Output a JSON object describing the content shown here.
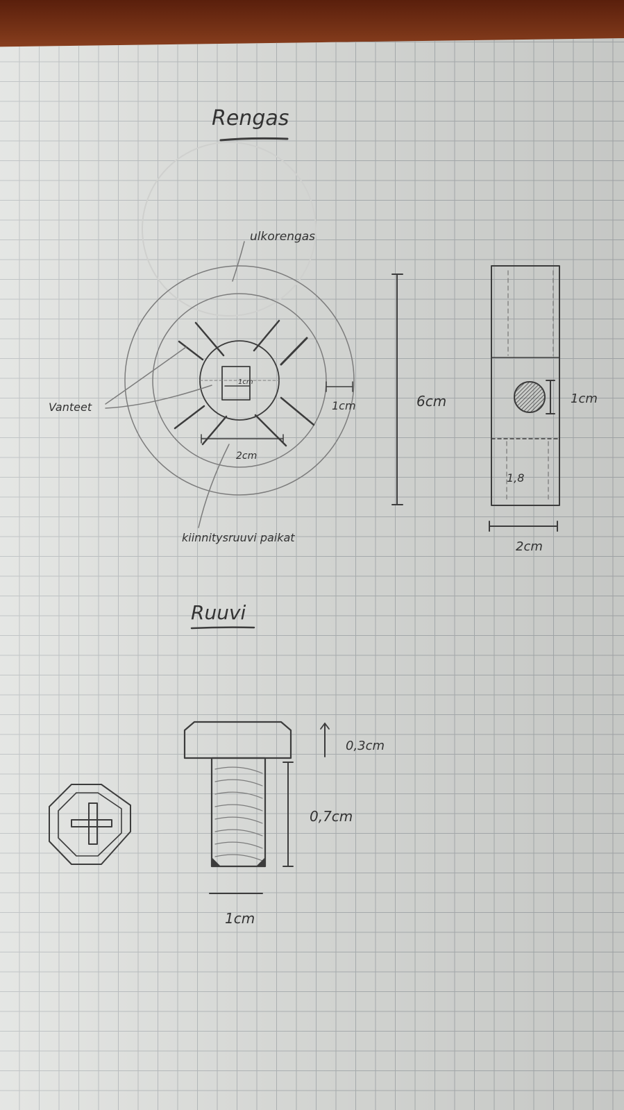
{
  "wheel": {
    "title": "Rengas",
    "label_outer_ring": "ulkorengas",
    "label_spokes": "Vanteet",
    "label_bolt_holes": "kiinnitysruuvi paikat",
    "dim_hub_square": "1cm",
    "dim_rim": "1cm",
    "dim_hub": "2cm",
    "dim_height": "6cm",
    "side_hole": "1cm",
    "side_inner": "1,8",
    "side_width": "2cm"
  },
  "screw": {
    "title": "Ruuvi",
    "dim_head": "0,3cm",
    "dim_shank": "0,7cm",
    "dim_width": "1cm"
  }
}
